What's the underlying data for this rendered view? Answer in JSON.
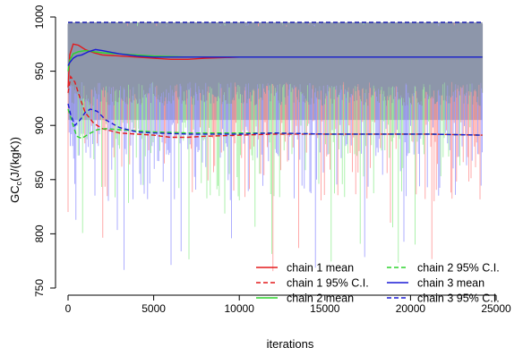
{
  "chart_data": {
    "type": "line",
    "title": "",
    "xlabel": "iterations",
    "ylabel_main": "GC",
    "ylabel_sub": "c",
    "ylabel_unit": "(J/(kgK))",
    "xlim": [
      0,
      25000
    ],
    "ylim": [
      750,
      1000
    ],
    "x_ticks": [
      {
        "value": 0,
        "label": "0"
      },
      {
        "value": 5000,
        "label": "5000"
      },
      {
        "value": 10000,
        "label": "10000"
      },
      {
        "value": 15000,
        "label": "15000"
      },
      {
        "value": 20000,
        "label": "20000"
      },
      {
        "value": 25000,
        "label": "25000"
      }
    ],
    "y_ticks": [
      {
        "value": 750,
        "label": "750"
      },
      {
        "value": 800,
        "label": "800"
      },
      {
        "value": 850,
        "label": "850"
      },
      {
        "value": 900,
        "label": "900"
      },
      {
        "value": 950,
        "label": "950"
      },
      {
        "value": 1000,
        "label": "1000"
      }
    ],
    "iterations_max": 24200,
    "trace_band": {
      "upper": 995,
      "lower_typical": 905,
      "min_observed": 759
    },
    "trace_colors": [
      "#ff9a9a",
      "#9ff09f",
      "#a0a0ff"
    ],
    "legend_position": "bottom-right",
    "series": [
      {
        "name": "chain 1 mean",
        "color": "#e31a1c",
        "dash": "solid",
        "x": [
          0,
          100,
          300,
          600,
          1000,
          1500,
          2000,
          3000,
          4000,
          5000,
          6000,
          7000,
          8000,
          10000,
          12000,
          15000,
          18000,
          21000,
          24200
        ],
        "y": [
          935,
          965,
          975,
          974,
          970,
          967,
          965,
          964,
          963,
          962,
          961,
          961,
          962,
          963,
          963,
          963,
          963,
          963,
          963
        ]
      },
      {
        "name": "chain 1 95% C.I.",
        "color": "#e31a1c",
        "dash": "dashed",
        "x": [
          0,
          150,
          400,
          700,
          1000,
          1500,
          2000,
          3000,
          4000,
          5000,
          6000,
          7000,
          8000,
          10000,
          12000,
          15000,
          18000,
          21000,
          24200
        ],
        "y": [
          930,
          945,
          940,
          925,
          912,
          902,
          897,
          893,
          892,
          891,
          889,
          889,
          890,
          891,
          892,
          892,
          892,
          892,
          891
        ]
      },
      {
        "name": "chain 2 mean",
        "color": "#2dd42d",
        "dash": "solid",
        "x": [
          0,
          100,
          300,
          600,
          1000,
          1500,
          2000,
          3000,
          4000,
          5000,
          7000,
          10000,
          12000,
          15000,
          18000,
          21000,
          24200
        ],
        "y": [
          950,
          960,
          966,
          968,
          969,
          968,
          967,
          966,
          965,
          964,
          963,
          963,
          963,
          963,
          963,
          963,
          963
        ]
      },
      {
        "name": "chain 2 95% C.I.",
        "color": "#2dd42d",
        "dash": "dashed",
        "x": [
          0,
          200,
          500,
          800,
          1200,
          1700,
          2200,
          3000,
          4000,
          5000,
          7000,
          10000,
          12000,
          15000,
          18000,
          21000,
          24200
        ],
        "y": [
          915,
          905,
          890,
          888,
          892,
          896,
          897,
          896,
          895,
          894,
          893,
          893,
          893,
          892,
          892,
          892,
          891
        ]
      },
      {
        "name": "chain 3 mean",
        "color": "#1a1ad6",
        "dash": "solid",
        "x": [
          0,
          100,
          300,
          500,
          800,
          1200,
          1600,
          2000,
          3000,
          4000,
          5000,
          7000,
          10000,
          12000,
          15000,
          18000,
          21000,
          24200
        ],
        "y": [
          955,
          958,
          962,
          964,
          965,
          968,
          970,
          969,
          966,
          964,
          963,
          963,
          963,
          963,
          963,
          963,
          963,
          963
        ]
      },
      {
        "name": "chain 3 95% C.I.",
        "color": "#1a1ad6",
        "dash": "dashed",
        "x": [
          0,
          150,
          400,
          700,
          1000,
          1300,
          1700,
          2200,
          3000,
          4000,
          5000,
          7000,
          10000,
          12000,
          15000,
          18000,
          21000,
          24200
        ],
        "y": [
          920,
          910,
          900,
          905,
          912,
          915,
          913,
          905,
          898,
          894,
          893,
          892,
          892,
          893,
          892,
          892,
          892,
          891
        ]
      },
      {
        "name": "chain 1 upper C.I.",
        "color": "#e31a1c",
        "dash": "dashed",
        "x": [
          0,
          24200
        ],
        "y": [
          995,
          995
        ]
      },
      {
        "name": "chain 2 upper C.I.",
        "color": "#2dd42d",
        "dash": "dashed",
        "x": [
          0,
          24200
        ],
        "y": [
          995,
          995
        ]
      },
      {
        "name": "chain 3 upper C.I.",
        "color": "#1a1ad6",
        "dash": "dashed",
        "x": [
          0,
          24200
        ],
        "y": [
          995,
          995
        ]
      }
    ],
    "legend": [
      {
        "label": "chain 1 mean",
        "color": "#e31a1c",
        "dash": "solid"
      },
      {
        "label": "chain 1 95% C.I.",
        "color": "#e31a1c",
        "dash": "dashed"
      },
      {
        "label": "chain 2 mean",
        "color": "#2dd42d",
        "dash": "solid"
      },
      {
        "label": "chain 2 95% C.I.",
        "color": "#2dd42d",
        "dash": "dashed"
      },
      {
        "label": "chain 3 mean",
        "color": "#1a1ad6",
        "dash": "solid"
      },
      {
        "label": "chain 3 95% C.I.",
        "color": "#1a1ad6",
        "dash": "dashed"
      }
    ]
  }
}
